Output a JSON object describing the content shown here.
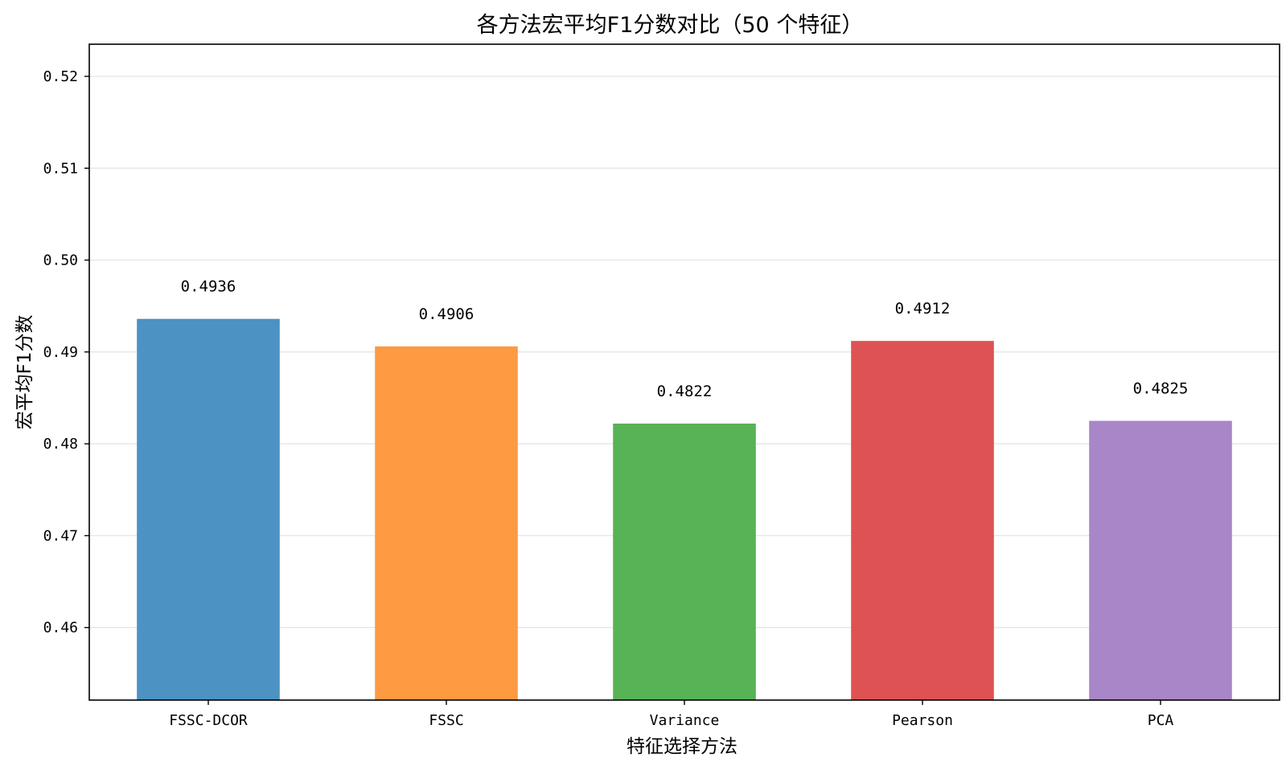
{
  "chart_data": {
    "type": "bar",
    "title": "各方法宏平均F1分数对比（50 个特征）",
    "xlabel": "特征选择方法",
    "ylabel": "宏平均F1分数",
    "categories": [
      "FSSC-DCOR",
      "FSSC",
      "Variance",
      "Pearson",
      "PCA"
    ],
    "values": [
      0.4936,
      0.4906,
      0.4822,
      0.4912,
      0.4825
    ],
    "value_labels": [
      "0.4936",
      "0.4906",
      "0.4822",
      "0.4912",
      "0.4825"
    ],
    "colors": [
      "#4c92c3",
      "#fd9a42",
      "#57b356",
      "#de5253",
      "#a986c7"
    ],
    "ylim": [
      0.4521,
      0.5235
    ],
    "yticks": [
      0.46,
      0.47,
      0.48,
      0.49,
      0.5,
      0.51,
      0.52
    ],
    "ytick_labels": [
      "0.46",
      "0.47",
      "0.48",
      "0.49",
      "0.50",
      "0.51",
      "0.52"
    ],
    "grid": "horizontal",
    "legend": "none"
  }
}
